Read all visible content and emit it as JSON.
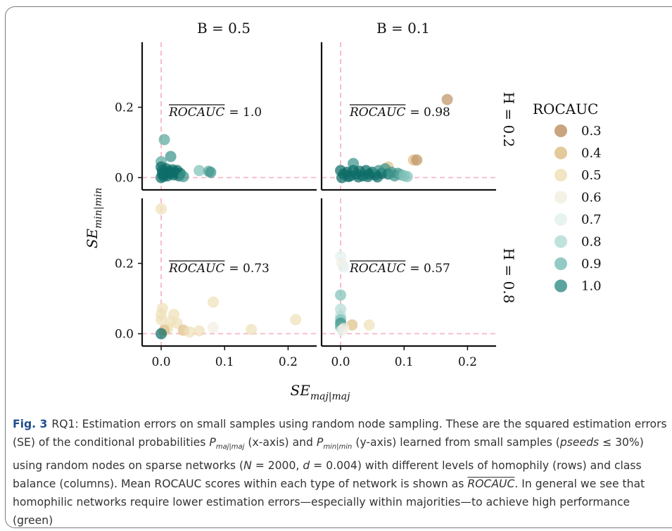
{
  "chart_data": {
    "type": "scatter",
    "columns": [
      "B = 0.5",
      "B = 0.1"
    ],
    "rows": [
      "H = 0.2",
      "H = 0.8"
    ],
    "xlabel": "SE_{maj|maj}",
    "ylabel": "SE_{min|min}",
    "xticks": [
      "0.0",
      "0.1",
      "0.2"
    ],
    "yticks": [
      "0.0",
      "0.2"
    ],
    "xlim": [
      -0.03,
      0.245
    ],
    "ylim": [
      -0.035,
      0.385
    ],
    "reference_lines": {
      "x": 0.0,
      "y": 0.0,
      "style": "dashed",
      "color": "#f7b6c8"
    },
    "legend": {
      "title": "ROCAUC",
      "placement": "right",
      "entries": [
        {
          "label": "0.3",
          "color": "#bf9467"
        },
        {
          "label": "0.4",
          "color": "#dfc189"
        },
        {
          "label": "0.5",
          "color": "#efe0b9"
        },
        {
          "label": "0.6",
          "color": "#f4efe2"
        },
        {
          "label": "0.7",
          "color": "#e3f1ef"
        },
        {
          "label": "0.8",
          "color": "#b5ddd7"
        },
        {
          "label": "0.9",
          "color": "#7fc2ba"
        },
        {
          "label": "1.0",
          "color": "#3d948c"
        }
      ]
    },
    "panels": [
      {
        "row": 0,
        "col": 0,
        "annotation": "ROCAUC",
        "annotation_value": "1.0",
        "points": [
          {
            "x": 0.005,
            "y": 0.108,
            "color": "#5ba79e"
          },
          {
            "x": 0.015,
            "y": 0.06,
            "color": "#3d948c"
          },
          {
            "x": 0.0,
            "y": 0.045,
            "color": "#5ba79e"
          },
          {
            "x": 0.06,
            "y": 0.02,
            "color": "#7fc2ba"
          },
          {
            "x": 0.075,
            "y": 0.018,
            "color": "#5ba79e"
          },
          {
            "x": 0.078,
            "y": 0.015,
            "color": "#3d948c"
          },
          {
            "x": 0.0,
            "y": 0.03,
            "color": "#0e6e68"
          },
          {
            "x": 0.002,
            "y": 0.02,
            "color": "#0e6e68"
          },
          {
            "x": 0.005,
            "y": 0.01,
            "color": "#0e6e68"
          },
          {
            "x": 0.008,
            "y": 0.025,
            "color": "#0e6e68"
          },
          {
            "x": 0.01,
            "y": 0.005,
            "color": "#0e6e68"
          },
          {
            "x": 0.012,
            "y": 0.018,
            "color": "#0e6e68"
          },
          {
            "x": 0.015,
            "y": 0.012,
            "color": "#0e6e68"
          },
          {
            "x": 0.018,
            "y": 0.022,
            "color": "#0e6e68"
          },
          {
            "x": 0.02,
            "y": 0.008,
            "color": "#0e6e68"
          },
          {
            "x": 0.022,
            "y": 0.015,
            "color": "#0e6e68"
          },
          {
            "x": 0.025,
            "y": 0.02,
            "color": "#0e6e68"
          },
          {
            "x": 0.028,
            "y": 0.005,
            "color": "#0e6e68"
          },
          {
            "x": 0.03,
            "y": 0.012,
            "color": "#0e6e68"
          },
          {
            "x": 0.035,
            "y": 0.003,
            "color": "#3d948c"
          },
          {
            "x": 0.0,
            "y": 0.0,
            "color": "#0e6e68"
          },
          {
            "x": 0.004,
            "y": 0.004,
            "color": "#0e6e68"
          },
          {
            "x": 0.007,
            "y": 0.014,
            "color": "#0e6e68"
          },
          {
            "x": 0.002,
            "y": 0.01,
            "color": "#0e6e68"
          }
        ]
      },
      {
        "row": 0,
        "col": 1,
        "annotation": "ROCAUC",
        "annotation_value": "0.98",
        "points": [
          {
            "x": 0.168,
            "y": 0.222,
            "color": "#bf9467"
          },
          {
            "x": 0.115,
            "y": 0.05,
            "color": "#dfc189"
          },
          {
            "x": 0.12,
            "y": 0.05,
            "color": "#bf9467"
          },
          {
            "x": 0.075,
            "y": 0.03,
            "color": "#dfc189"
          },
          {
            "x": 0.02,
            "y": 0.04,
            "color": "#3d948c"
          },
          {
            "x": 0.0,
            "y": 0.02,
            "color": "#0e6e68"
          },
          {
            "x": 0.005,
            "y": 0.01,
            "color": "#0e6e68"
          },
          {
            "x": 0.01,
            "y": 0.015,
            "color": "#0e6e68"
          },
          {
            "x": 0.015,
            "y": 0.005,
            "color": "#0e6e68"
          },
          {
            "x": 0.02,
            "y": 0.02,
            "color": "#0e6e68"
          },
          {
            "x": 0.025,
            "y": 0.01,
            "color": "#0e6e68"
          },
          {
            "x": 0.03,
            "y": 0.018,
            "color": "#0e6e68"
          },
          {
            "x": 0.035,
            "y": 0.005,
            "color": "#0e6e68"
          },
          {
            "x": 0.04,
            "y": 0.02,
            "color": "#0e6e68"
          },
          {
            "x": 0.045,
            "y": 0.01,
            "color": "#0e6e68"
          },
          {
            "x": 0.05,
            "y": 0.015,
            "color": "#0e6e68"
          },
          {
            "x": 0.055,
            "y": 0.008,
            "color": "#0e6e68"
          },
          {
            "x": 0.06,
            "y": 0.02,
            "color": "#3d948c"
          },
          {
            "x": 0.065,
            "y": 0.012,
            "color": "#0e6e68"
          },
          {
            "x": 0.07,
            "y": 0.025,
            "color": "#3d948c"
          },
          {
            "x": 0.075,
            "y": 0.01,
            "color": "#0e6e68"
          },
          {
            "x": 0.08,
            "y": 0.015,
            "color": "#3d948c"
          },
          {
            "x": 0.085,
            "y": 0.005,
            "color": "#3d948c"
          },
          {
            "x": 0.09,
            "y": 0.012,
            "color": "#3d948c"
          },
          {
            "x": 0.095,
            "y": 0.008,
            "color": "#5ba79e"
          },
          {
            "x": 0.1,
            "y": 0.005,
            "color": "#7fc2ba"
          },
          {
            "x": 0.105,
            "y": 0.003,
            "color": "#7fc2ba"
          },
          {
            "x": 0.002,
            "y": 0.0,
            "color": "#0e6e68"
          },
          {
            "x": 0.012,
            "y": 0.003,
            "color": "#0e6e68"
          },
          {
            "x": 0.028,
            "y": 0.002,
            "color": "#0e6e68"
          },
          {
            "x": 0.043,
            "y": 0.003,
            "color": "#0e6e68"
          },
          {
            "x": 0.058,
            "y": 0.002,
            "color": "#0e6e68"
          }
        ]
      },
      {
        "row": 1,
        "col": 0,
        "annotation": "ROCAUC",
        "annotation_value": "0.73",
        "points": [
          {
            "x": 0.0,
            "y": 0.355,
            "color": "#efe0b9"
          },
          {
            "x": 0.082,
            "y": 0.09,
            "color": "#efe0b9"
          },
          {
            "x": 0.212,
            "y": 0.04,
            "color": "#efe0b9"
          },
          {
            "x": 0.142,
            "y": 0.012,
            "color": "#efe0b9"
          },
          {
            "x": 0.002,
            "y": 0.072,
            "color": "#efe0b9"
          },
          {
            "x": 0.0,
            "y": 0.055,
            "color": "#efe0b9"
          },
          {
            "x": 0.0,
            "y": 0.04,
            "color": "#efe0b9"
          },
          {
            "x": 0.02,
            "y": 0.055,
            "color": "#efe0b9"
          },
          {
            "x": 0.015,
            "y": 0.035,
            "color": "#efe0b9"
          },
          {
            "x": 0.025,
            "y": 0.03,
            "color": "#efe0b9"
          },
          {
            "x": 0.035,
            "y": 0.01,
            "color": "#dfc189"
          },
          {
            "x": 0.045,
            "y": 0.005,
            "color": "#efe0b9"
          },
          {
            "x": 0.06,
            "y": 0.008,
            "color": "#efe0b9"
          },
          {
            "x": 0.082,
            "y": 0.018,
            "color": "#f4efe2"
          },
          {
            "x": 0.01,
            "y": 0.015,
            "color": "#efe0b9"
          },
          {
            "x": 0.005,
            "y": 0.01,
            "color": "#dfc189"
          },
          {
            "x": 0.0,
            "y": 0.0,
            "color": "#0e6e68"
          }
        ]
      },
      {
        "row": 1,
        "col": 1,
        "annotation": "ROCAUC",
        "annotation_value": "0.57",
        "points": [
          {
            "x": 0.0,
            "y": 0.22,
            "color": "#e3f1ef"
          },
          {
            "x": 0.002,
            "y": 0.2,
            "color": "#f4efe2"
          },
          {
            "x": 0.005,
            "y": 0.19,
            "color": "#e3f1ef"
          },
          {
            "x": 0.0,
            "y": 0.11,
            "color": "#7fc2ba"
          },
          {
            "x": 0.0,
            "y": 0.07,
            "color": "#b5ddd7"
          },
          {
            "x": 0.0,
            "y": 0.05,
            "color": "#b5ddd7"
          },
          {
            "x": 0.0,
            "y": 0.04,
            "color": "#7fc2ba"
          },
          {
            "x": 0.0,
            "y": 0.03,
            "color": "#3d948c"
          },
          {
            "x": 0.0,
            "y": 0.02,
            "color": "#5ba79e"
          },
          {
            "x": 0.002,
            "y": 0.01,
            "color": "#e3f1ef"
          },
          {
            "x": 0.018,
            "y": 0.025,
            "color": "#dfc189"
          },
          {
            "x": 0.045,
            "y": 0.025,
            "color": "#efe0b9"
          },
          {
            "x": 0.005,
            "y": 0.015,
            "color": "#f4efe2"
          }
        ]
      }
    ]
  },
  "caption": {
    "label": "Fig. 3",
    "part1": "RQ1: Estimation errors on small samples using random node sampling. These are the squared estimation errors (SE) of the conditional probabilities ",
    "p_letter": "P",
    "p1_sub": "maj|maj",
    "part2": " (x-axis) and ",
    "p2_sub": "min|min",
    "part3": " (y-axis) learned from small samples (",
    "pseeds": "pseeds",
    "part4": " ≤ 30%) using random nodes on sparse networks (",
    "n_eq": "N",
    "part5": " = 2000, ",
    "d_eq": "d",
    "part6": " = 0.004) with different levels of homophily (rows) and class balance (columns). Mean ROCAUC scores within each type of network is shown as ",
    "over": "ROCAUC",
    "part7": ". In general we see that homophilic networks require lower estimation errors—especially within majorities—to achieve high performance (green)"
  }
}
